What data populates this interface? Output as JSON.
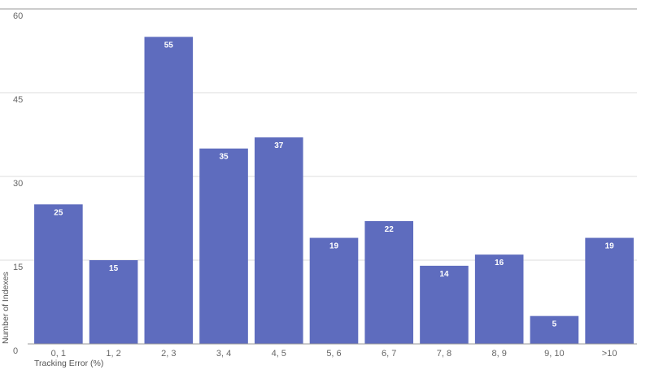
{
  "chart_data": {
    "type": "bar",
    "categories": [
      "0, 1",
      "1, 2",
      "2, 3",
      "3, 4",
      "4, 5",
      "5, 6",
      "6, 7",
      "7, 8",
      "8, 9",
      "9, 10",
      ">10"
    ],
    "values": [
      25,
      15,
      55,
      35,
      37,
      19,
      22,
      14,
      16,
      5,
      19
    ],
    "title": "",
    "xlabel": "Tracking Error (%)",
    "ylabel": "Number of Indexes",
    "ylim": [
      0,
      60
    ],
    "yticks": [
      0,
      15,
      30,
      45,
      60
    ],
    "grid": true,
    "legend": "none",
    "colors": {
      "bar": "#5E6CBE",
      "grid": "#dddddd",
      "axis": "#999999"
    }
  }
}
